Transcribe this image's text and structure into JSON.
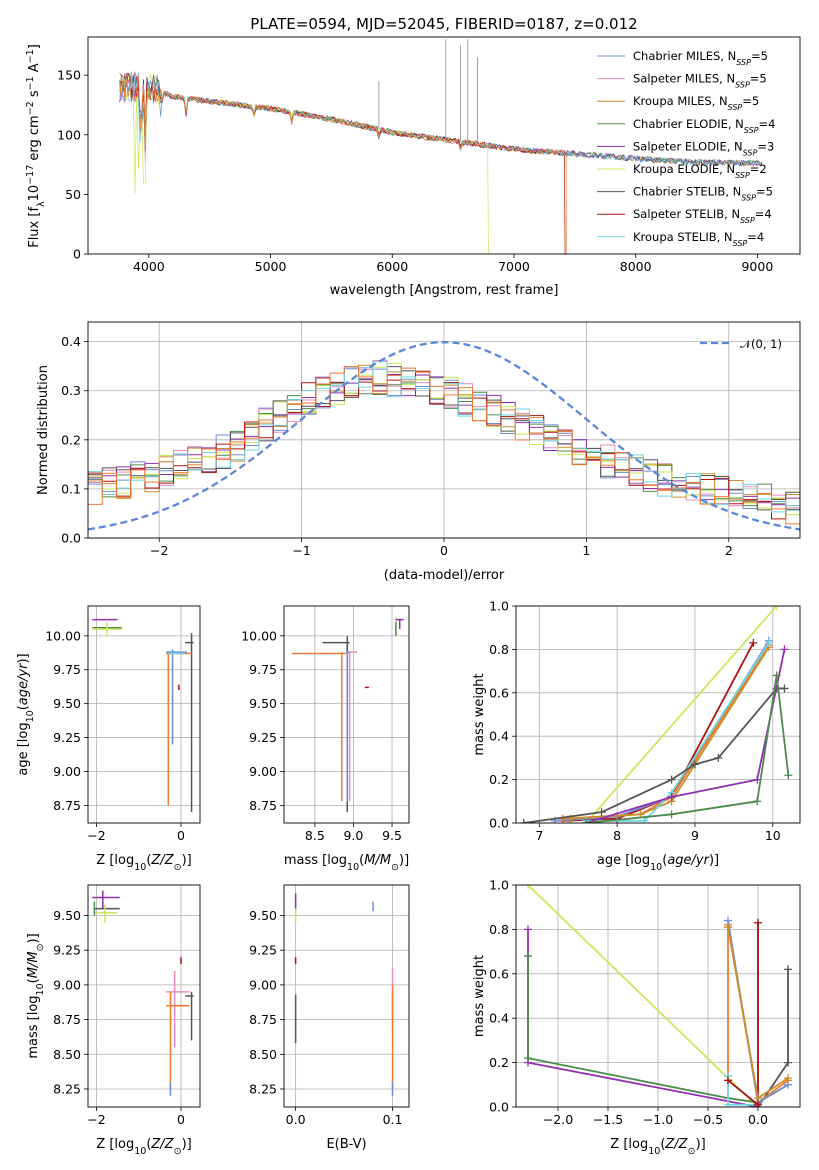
{
  "figure": {
    "title": "PLATE=0594, MJD=52045, FIBERID=0187, z=0.012"
  },
  "colors": {
    "Chabrier MILES": "#6b8fd6",
    "Salpeter MILES": "#e68ac0",
    "Kroupa MILES": "#c9902a",
    "Chabrier ELODIE": "#4e8a4e",
    "Salpeter ELODIE": "#9030b0",
    "Kroupa ELODIE": "#c8e85a",
    "Chabrier STELIB": "#555555",
    "Salpeter STELIB": "#b01010",
    "Kroupa STELIB": "#70d4e0",
    "orange": "#f07a30",
    "gauss": "#5a87d6",
    "grid": "#b0b0b0"
  },
  "chart_data": [
    {
      "id": "spectrum",
      "type": "line",
      "xlabel": "wavelength [Angstrom, rest frame]",
      "ylabel": "Flux [f_λ10^-17 erg cm^-2 s^-1 A^-1]",
      "xlim": [
        3500,
        9350
      ],
      "ylim": [
        0,
        182
      ],
      "xticks": [
        4000,
        5000,
        6000,
        7000,
        8000,
        9000
      ],
      "yticks": [
        0,
        50,
        100,
        150
      ],
      "grid": false,
      "legend_position": "top-right",
      "legend": [
        {
          "model": "Chabrier MILES",
          "n": "5"
        },
        {
          "model": "Salpeter MILES",
          "n": "5"
        },
        {
          "model": "Kroupa MILES",
          "n": "5"
        },
        {
          "model": "Chabrier ELODIE",
          "n": "4"
        },
        {
          "model": "Salpeter ELODIE",
          "n": "3"
        },
        {
          "model": "Kroupa ELODIE",
          "n": "2"
        },
        {
          "model": "Chabrier STELIB",
          "n": "5"
        },
        {
          "model": "Salpeter STELIB",
          "n": "4"
        },
        {
          "model": "Kroupa STELIB",
          "n": "4"
        }
      ],
      "continuum": [
        [
          3760,
          140
        ],
        [
          4000,
          140
        ],
        [
          4200,
          132
        ],
        [
          4500,
          128
        ],
        [
          5000,
          122
        ],
        [
          5500,
          113
        ],
        [
          6000,
          102
        ],
        [
          6500,
          95
        ],
        [
          7000,
          88
        ],
        [
          7500,
          84
        ],
        [
          8000,
          80
        ],
        [
          8500,
          77
        ],
        [
          9000,
          76
        ]
      ],
      "spikes": [
        [
          5890,
          145
        ],
        [
          6440,
          180
        ],
        [
          6560,
          175
        ],
        [
          6620,
          180
        ],
        [
          6700,
          165
        ]
      ],
      "dropouts": [
        {
          "model": "Kroupa ELODIE",
          "x": 6790
        },
        {
          "model": "Salpeter STELIB",
          "x": 7420
        },
        {
          "model": "orange",
          "x": 7430
        }
      ]
    },
    {
      "id": "residuals",
      "type": "step",
      "xlabel": "(data-model)/error",
      "ylabel": "Normed distribution",
      "xlim": [
        -2.5,
        2.5
      ],
      "ylim": [
        0,
        0.44
      ],
      "xticks": [
        -2,
        -1,
        0,
        1,
        2
      ],
      "yticks": [
        0.0,
        0.1,
        0.2,
        0.3,
        0.4
      ],
      "grid": true,
      "legend_position": "top-right",
      "gaussian_label": "𝒩(0, 1)",
      "series": [
        "Chabrier MILES",
        "Salpeter MILES",
        "Kroupa MILES",
        "Chabrier ELODIE",
        "Salpeter ELODIE",
        "Kroupa ELODIE",
        "Chabrier STELIB",
        "Salpeter STELIB",
        "Kroupa STELIB",
        "orange"
      ],
      "bin_width": 0.1,
      "envelope": [
        [
          -2.5,
          0.1
        ],
        [
          -2.0,
          0.13
        ],
        [
          -1.5,
          0.18
        ],
        [
          -1.0,
          0.28
        ],
        [
          -0.5,
          0.33
        ],
        [
          0.0,
          0.3
        ],
        [
          0.5,
          0.24
        ],
        [
          1.0,
          0.17
        ],
        [
          1.5,
          0.12
        ],
        [
          2.0,
          0.09
        ],
        [
          2.5,
          0.06
        ]
      ]
    },
    {
      "id": "age_vs_Z",
      "type": "errorbar",
      "xlabel": "Z [log10(Z/Z_sun)]",
      "ylabel": "age  [log10(age/yr)]",
      "xlim": [
        -2.2,
        0.45
      ],
      "ylim": [
        8.62,
        10.22
      ],
      "xticks": [
        -2,
        0
      ],
      "yticks": [
        8.75,
        9.0,
        9.25,
        9.5,
        9.75,
        10.0
      ],
      "grid": true,
      "points": [
        {
          "model": "Salpeter ELODIE",
          "x": -1.85,
          "y": 10.12,
          "xlo": -2.1,
          "xhi": -1.5,
          "ylo": 10.12,
          "yhi": 10.12
        },
        {
          "model": "Chabrier ELODIE",
          "x": -1.8,
          "y": 10.06,
          "xlo": -2.1,
          "xhi": -1.4,
          "ylo": 10.06,
          "yhi": 10.06
        },
        {
          "model": "Kroupa ELODIE",
          "x": -1.75,
          "y": 10.05,
          "xlo": -2.1,
          "xhi": -1.4,
          "ylo": 10.0,
          "yhi": 10.1
        },
        {
          "model": "Chabrier STELIB",
          "x": 0.25,
          "y": 9.95,
          "xlo": 0.1,
          "xhi": 0.3,
          "ylo": 8.7,
          "yhi": 10.02
        },
        {
          "model": "orange",
          "x": -0.3,
          "y": 9.87,
          "xlo": -0.35,
          "xhi": 0.25,
          "ylo": 8.75,
          "yhi": 9.88
        },
        {
          "model": "Chabrier MILES",
          "x": -0.2,
          "y": 9.88,
          "xlo": -0.35,
          "xhi": 0.15,
          "ylo": 9.2,
          "yhi": 9.9
        },
        {
          "model": "Kroupa STELIB",
          "x": 0.05,
          "y": 9.87,
          "xlo": -0.3,
          "xhi": 0.1,
          "ylo": 9.87,
          "yhi": 9.87
        },
        {
          "model": "Salpeter STELIB",
          "x": -0.05,
          "y": 9.62,
          "xlo": -0.05,
          "xhi": -0.05,
          "ylo": 9.6,
          "yhi": 9.64
        }
      ]
    },
    {
      "id": "age_vs_mass",
      "type": "errorbar",
      "xlabel": "mass [log10(M/M_sun)]",
      "ylabel": "",
      "xlim": [
        8.1,
        9.72
      ],
      "ylim": [
        8.62,
        10.22
      ],
      "xticks": [
        8.5,
        9.0,
        9.5
      ],
      "yticks": [
        8.75,
        9.0,
        9.25,
        9.5,
        9.75,
        10.0
      ],
      "grid": true,
      "points": [
        {
          "model": "Kroupa ELODIE",
          "x": 9.55,
          "y": 10.07,
          "xlo": 9.55,
          "xhi": 9.55,
          "ylo": 10.0,
          "yhi": 10.14
        },
        {
          "model": "Salpeter ELODIE",
          "x": 9.6,
          "y": 10.12,
          "xlo": 9.55,
          "xhi": 9.65,
          "ylo": 10.05,
          "yhi": 10.12
        },
        {
          "model": "Chabrier ELODIE",
          "x": 9.55,
          "y": 10.05,
          "xlo": 9.55,
          "xhi": 9.55,
          "ylo": 10.0,
          "yhi": 10.1
        },
        {
          "model": "Chabrier STELIB",
          "x": 8.92,
          "y": 9.95,
          "xlo": 8.6,
          "xhi": 8.95,
          "ylo": 8.7,
          "yhi": 10.0
        },
        {
          "model": "orange",
          "x": 8.85,
          "y": 9.87,
          "xlo": 8.2,
          "xhi": 8.9,
          "ylo": 8.78,
          "yhi": 9.88
        },
        {
          "model": "Salpeter MILES",
          "x": 8.95,
          "y": 9.88,
          "xlo": 8.9,
          "xhi": 9.05,
          "ylo": 8.78,
          "yhi": 9.88
        },
        {
          "model": "Chabrier MILES",
          "x": 8.92,
          "y": 9.88,
          "xlo": 8.9,
          "xhi": 8.95,
          "ylo": 8.78,
          "yhi": 9.88
        },
        {
          "model": "Salpeter STELIB",
          "x": 9.17,
          "y": 9.62,
          "xlo": 9.15,
          "xhi": 9.2,
          "ylo": 9.62,
          "yhi": 9.62
        }
      ]
    },
    {
      "id": "mass_weight_vs_age",
      "type": "line",
      "xlabel": "age  [log10(age/yr)]",
      "ylabel": "mass weight",
      "xlim": [
        6.7,
        10.35
      ],
      "ylim": [
        0.0,
        1.0
      ],
      "xticks": [
        7,
        8,
        9,
        10
      ],
      "yticks": [
        0.0,
        0.2,
        0.4,
        0.6,
        0.8,
        1.0
      ],
      "grid": true,
      "series": [
        {
          "model": "Kroupa ELODIE",
          "points": [
            [
              7.6,
              0.0
            ],
            [
              10.05,
              1.0
            ]
          ]
        },
        {
          "model": "Salpeter STELIB",
          "points": [
            [
              7.3,
              0.01
            ],
            [
              8.0,
              0.02
            ],
            [
              8.7,
              0.12
            ],
            [
              9.75,
              0.83
            ]
          ]
        },
        {
          "model": "Chabrier MILES",
          "points": [
            [
              7.2,
              0.01
            ],
            [
              8.0,
              0.03
            ],
            [
              8.7,
              0.12
            ],
            [
              9.95,
              0.84
            ]
          ]
        },
        {
          "model": "orange",
          "points": [
            [
              7.3,
              0.02
            ],
            [
              8.3,
              0.04
            ],
            [
              8.7,
              0.12
            ],
            [
              9.95,
              0.82
            ]
          ]
        },
        {
          "model": "Kroupa MILES",
          "points": [
            [
              7.4,
              0.02
            ],
            [
              8.3,
              0.04
            ],
            [
              8.7,
              0.1
            ],
            [
              9.95,
              0.81
            ]
          ]
        },
        {
          "model": "Kroupa STELIB",
          "points": [
            [
              7.6,
              0.01
            ],
            [
              8.35,
              0.01
            ],
            [
              8.7,
              0.14
            ],
            [
              9.95,
              0.83
            ]
          ]
        },
        {
          "model": "Chabrier STELIB",
          "points": [
            [
              6.8,
              0.0
            ],
            [
              7.8,
              0.05
            ],
            [
              8.7,
              0.2
            ],
            [
              9.0,
              0.27
            ],
            [
              9.3,
              0.3
            ],
            [
              10.05,
              0.62
            ],
            [
              10.15,
              0.62
            ]
          ]
        },
        {
          "model": "Salpeter ELODIE",
          "points": [
            [
              7.6,
              0.0
            ],
            [
              8.7,
              0.12
            ],
            [
              9.8,
              0.2
            ],
            [
              10.15,
              0.8
            ]
          ]
        },
        {
          "model": "Chabrier ELODIE",
          "points": [
            [
              7.6,
              0.0
            ],
            [
              8.7,
              0.04
            ],
            [
              9.8,
              0.1
            ],
            [
              10.05,
              0.68
            ],
            [
              10.2,
              0.22
            ]
          ]
        }
      ]
    },
    {
      "id": "mass_vs_Z",
      "type": "errorbar",
      "xlabel": "Z [log10(Z/Z_sun)]",
      "ylabel": "mass [log10(M/M_sun)]",
      "xlim": [
        -2.2,
        0.45
      ],
      "ylim": [
        8.12,
        9.72
      ],
      "xticks": [
        -2,
        0
      ],
      "yticks": [
        8.25,
        8.5,
        8.75,
        9.0,
        9.25,
        9.5
      ],
      "grid": true,
      "points": [
        {
          "model": "Salpeter ELODIE",
          "x": -1.85,
          "y": 9.63,
          "xlo": -2.1,
          "xhi": -1.45,
          "ylo": 9.55,
          "yhi": 9.68
        },
        {
          "model": "Chabrier STELIB",
          "x": -1.8,
          "y": 9.55,
          "xlo": -2.05,
          "xhi": -1.45,
          "ylo": 9.55,
          "yhi": 9.55
        },
        {
          "model": "Kroupa ELODIE",
          "x": -1.8,
          "y": 9.52,
          "xlo": -2.05,
          "xhi": -1.5,
          "ylo": 9.45,
          "yhi": 9.58
        },
        {
          "model": "Chabrier ELODIE",
          "x": -2.05,
          "y": 9.55,
          "xlo": -2.05,
          "xhi": -2.05,
          "ylo": 9.5,
          "yhi": 9.6
        },
        {
          "model": "Salpeter STELIB",
          "x": 0.0,
          "y": 9.17,
          "xlo": 0.0,
          "xhi": 0.0,
          "ylo": 9.15,
          "yhi": 9.2
        },
        {
          "model": "Salpeter MILES",
          "x": -0.15,
          "y": 8.95,
          "xlo": -0.35,
          "xhi": 0.2,
          "ylo": 8.55,
          "yhi": 9.1
        },
        {
          "model": "Chabrier STELIB",
          "x": 0.25,
          "y": 8.92,
          "xlo": 0.1,
          "xhi": 0.3,
          "ylo": 8.6,
          "yhi": 8.95
        },
        {
          "model": "orange",
          "x": -0.25,
          "y": 8.85,
          "xlo": -0.35,
          "xhi": 0.2,
          "ylo": 8.25,
          "yhi": 8.95
        },
        {
          "model": "Chabrier MILES",
          "x": -0.25,
          "y": 8.22,
          "xlo": -0.25,
          "xhi": -0.25,
          "ylo": 8.2,
          "yhi": 8.3
        }
      ]
    },
    {
      "id": "mass_vs_ebv",
      "type": "errorbar",
      "xlabel": "E(B-V)",
      "ylabel": "",
      "xlim": [
        -0.012,
        0.117
      ],
      "ylim": [
        8.12,
        9.72
      ],
      "xticks": [
        0.0,
        0.1
      ],
      "yticks": [
        8.25,
        8.5,
        8.75,
        9.0,
        9.25,
        9.5
      ],
      "grid": true,
      "points": [
        {
          "model": "Salpeter ELODIE",
          "x": 0.0,
          "y": 9.6,
          "xlo": 0.0,
          "xhi": 0.0,
          "ylo": 9.55,
          "yhi": 9.66
        },
        {
          "model": "Kroupa ELODIE",
          "x": 0.0,
          "y": 9.5,
          "xlo": 0.0,
          "xhi": 0.0,
          "ylo": 9.45,
          "yhi": 9.55
        },
        {
          "model": "Salpeter STELIB",
          "x": 0.0,
          "y": 9.17,
          "xlo": 0.0,
          "xhi": 0.0,
          "ylo": 9.15,
          "yhi": 9.2
        },
        {
          "model": "Chabrier STELIB",
          "x": 0.0,
          "y": 8.75,
          "xlo": 0.0,
          "xhi": 0.0,
          "ylo": 8.58,
          "yhi": 8.93
        },
        {
          "model": "Chabrier MILES",
          "x": 0.08,
          "y": 9.57,
          "xlo": 0.08,
          "xhi": 0.08,
          "ylo": 9.53,
          "yhi": 9.6
        },
        {
          "model": "Salpeter MILES",
          "x": 0.1,
          "y": 8.95,
          "xlo": 0.1,
          "xhi": 0.1,
          "ylo": 8.7,
          "yhi": 9.12
        },
        {
          "model": "orange",
          "x": 0.1,
          "y": 8.6,
          "xlo": 0.1,
          "xhi": 0.1,
          "ylo": 8.25,
          "yhi": 9.0
        },
        {
          "model": "Chabrier MILES",
          "x": 0.1,
          "y": 8.23,
          "xlo": 0.1,
          "xhi": 0.1,
          "ylo": 8.2,
          "yhi": 8.3
        }
      ]
    },
    {
      "id": "mass_weight_vs_Z",
      "type": "line",
      "xlabel": "Z [log10(Z/Z_sun)]",
      "ylabel": "mass weight",
      "xlim": [
        -2.42,
        0.42
      ],
      "ylim": [
        0.0,
        1.0
      ],
      "xticks": [
        -2.0,
        -1.5,
        -1.0,
        -0.5,
        0.0
      ],
      "yticks": [
        0.0,
        0.2,
        0.4,
        0.6,
        0.8,
        1.0
      ],
      "grid": true,
      "series": [
        {
          "model": "Kroupa ELODIE",
          "points": [
            [
              -2.3,
              1.0
            ],
            [
              0.0,
              0.0
            ]
          ]
        },
        {
          "model": "Salpeter ELODIE",
          "points": [
            [
              -2.3,
              0.8
            ],
            [
              -2.3,
              0.2
            ],
            [
              0.0,
              0.0
            ],
            [
              0.0,
              0.02
            ]
          ]
        },
        {
          "model": "Chabrier ELODIE",
          "points": [
            [
              -2.3,
              0.68
            ],
            [
              -2.3,
              0.22
            ],
            [
              -0.3,
              0.04
            ],
            [
              0.0,
              0.02
            ]
          ]
        },
        {
          "model": "Chabrier STELIB",
          "points": [
            [
              0.0,
              0.0
            ],
            [
              0.3,
              0.2
            ],
            [
              0.3,
              0.62
            ]
          ]
        },
        {
          "model": "orange",
          "points": [
            [
              -0.3,
              0.12
            ],
            [
              -0.3,
              0.82
            ],
            [
              0.0,
              0.02
            ],
            [
              0.3,
              0.12
            ]
          ]
        },
        {
          "model": "Chabrier MILES",
          "points": [
            [
              -0.3,
              0.84
            ],
            [
              0.0,
              0.02
            ],
            [
              0.3,
              0.1
            ]
          ]
        },
        {
          "model": "Kroupa STELIB",
          "points": [
            [
              -0.3,
              0.14
            ],
            [
              -0.3,
              0.01
            ],
            [
              0.0,
              0.01
            ],
            [
              0.0,
              0.83
            ]
          ]
        },
        {
          "model": "Salpeter STELIB",
          "points": [
            [
              -0.3,
              0.12
            ],
            [
              0.0,
              0.01
            ],
            [
              0.0,
              0.83
            ]
          ]
        },
        {
          "model": "Kroupa MILES",
          "points": [
            [
              -0.3,
              0.81
            ],
            [
              0.0,
              0.04
            ],
            [
              0.3,
              0.13
            ]
          ]
        }
      ]
    }
  ]
}
